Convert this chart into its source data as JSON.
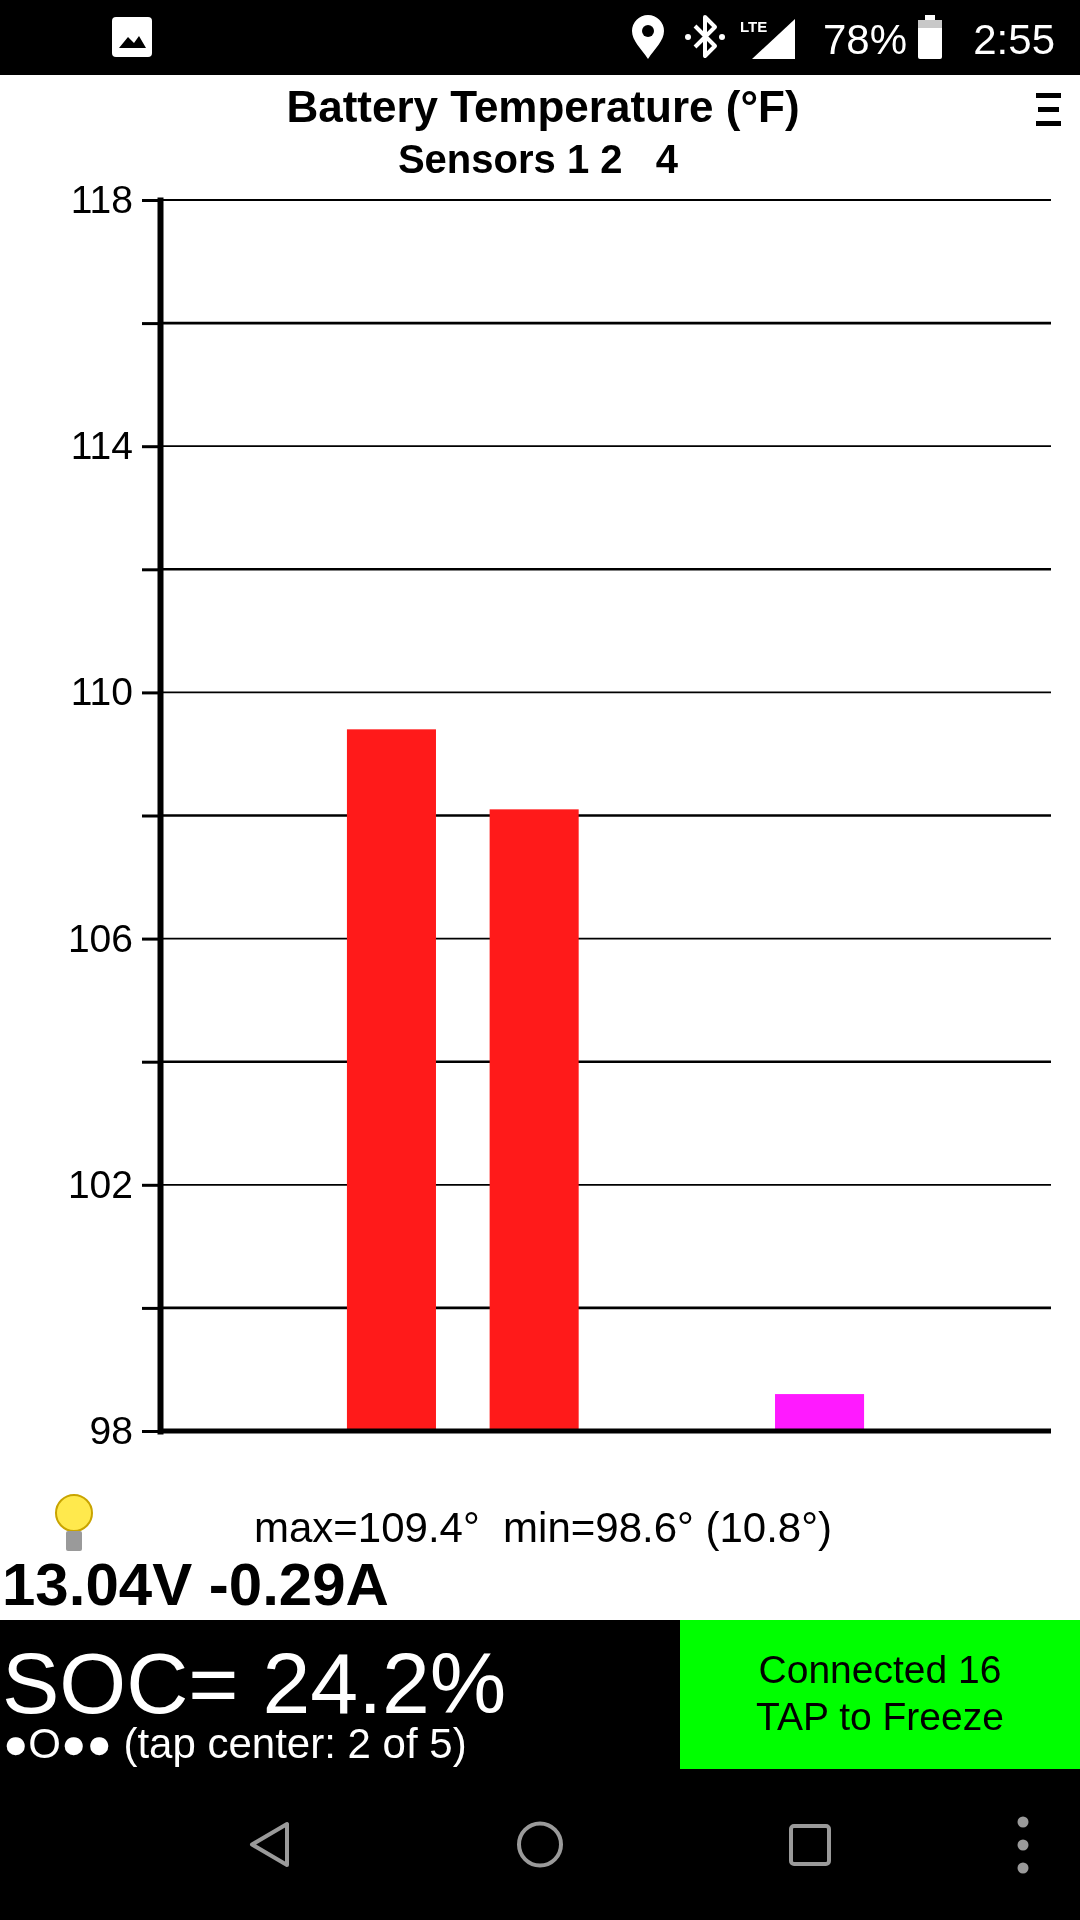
{
  "chart_data": {
    "type": "bar",
    "title": "Battery Temperature (°F)",
    "subtitle": "Sensors 1 2   4",
    "categories": [
      null,
      null,
      null,
      null,
      null,
      null
    ],
    "values": [
      null,
      109.4,
      108.1,
      null,
      98.6,
      null
    ],
    "colors": [
      null,
      "#ff1a1a",
      "#ff1a1a",
      null,
      "#ff1aff",
      null
    ],
    "ylim": [
      98,
      118
    ],
    "yticks": [
      98,
      {
        "value": 100,
        "label": null
      },
      102,
      {
        "value": 104,
        "label": null
      },
      106,
      {
        "value": 108,
        "label": null
      },
      110,
      {
        "value": 112,
        "label": null
      },
      114,
      {
        "value": 116,
        "label": null
      },
      118
    ],
    "grid": "y",
    "annotations": [
      "LTE",
      "78%",
      "2:55",
      "max=109.4°  min=98.6° (10.8°)",
      "13.04V -0.29A",
      "SOC= 24.2%",
      "●O●● (tap center: 2 of 5)",
      "Connected 16",
      "TAP to Freeze"
    ]
  }
}
